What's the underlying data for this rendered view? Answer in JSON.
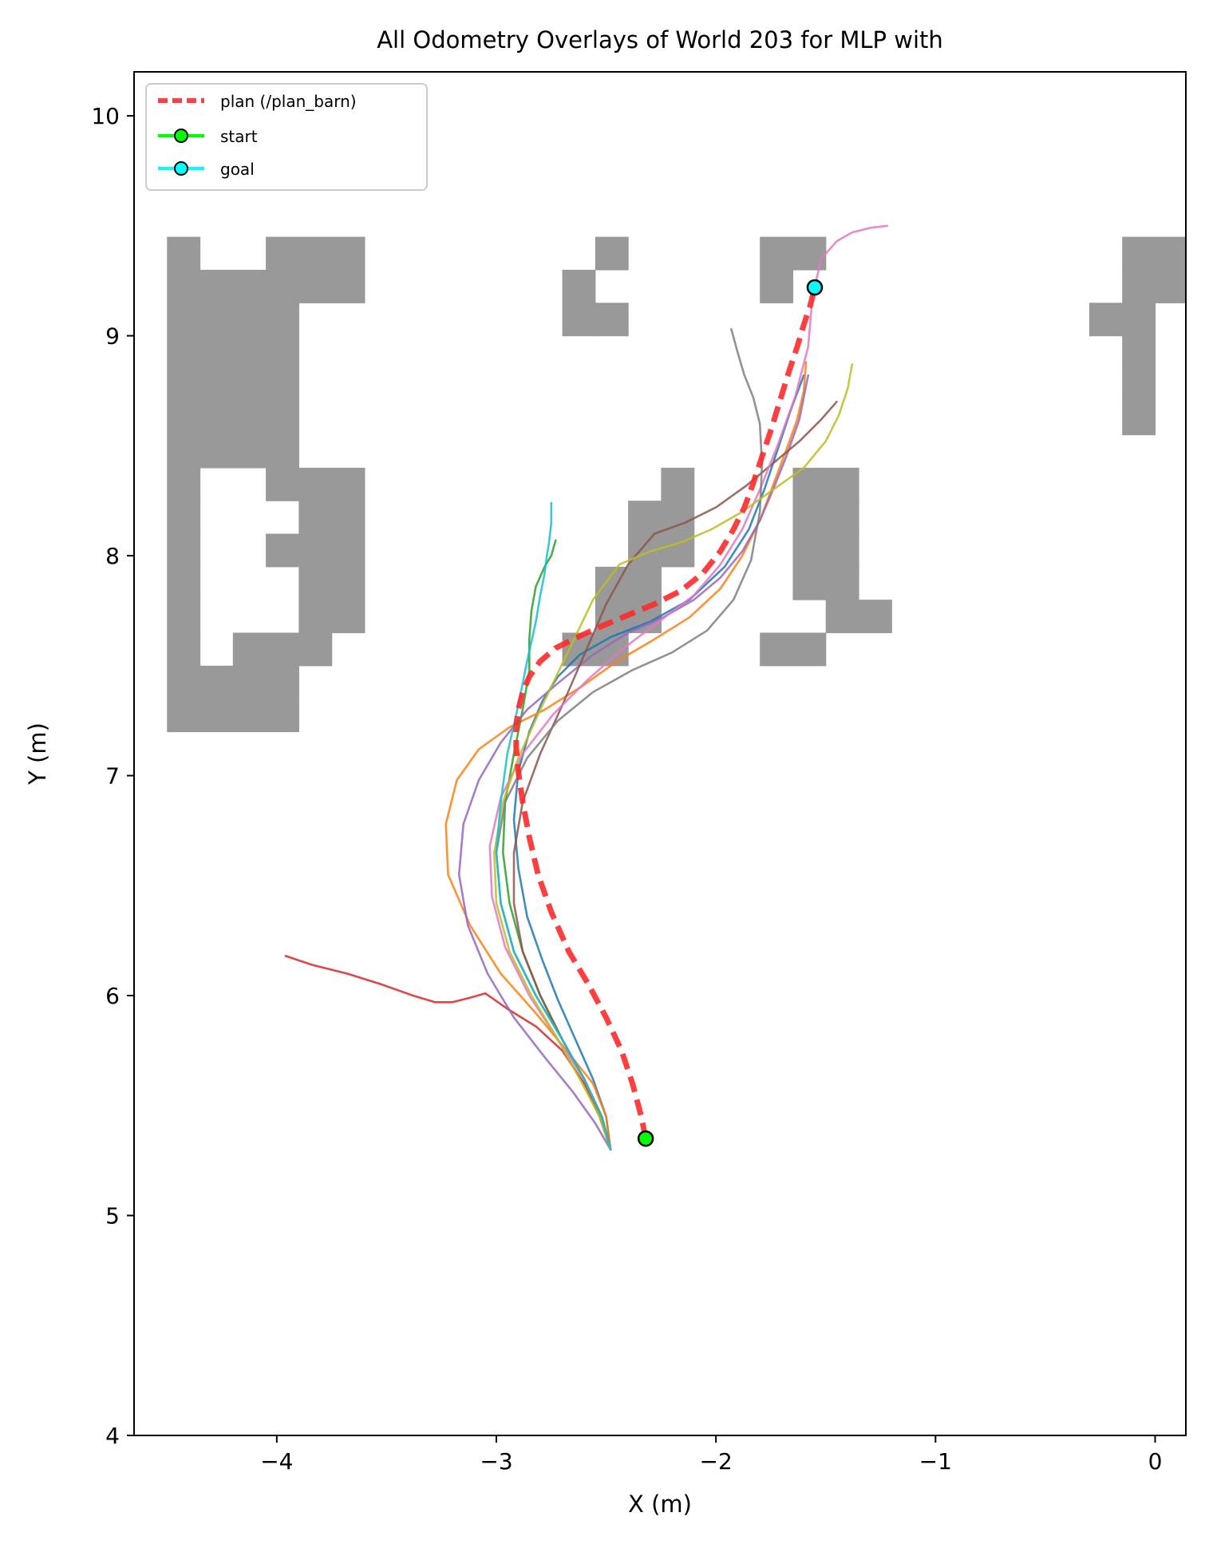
{
  "chart_data": {
    "type": "line",
    "title": "All Odometry Overlays of World 203 for MLP with",
    "xlabel": "X (m)",
    "ylabel": "Y (m)",
    "xlim": [
      -4.65,
      0.14
    ],
    "ylim": [
      4.0,
      10.2
    ],
    "xticks": [
      -4,
      -3,
      -2,
      -1,
      0
    ],
    "xtick_labels": [
      "−4",
      "−3",
      "−2",
      "−1",
      "0"
    ],
    "yticks": [
      4,
      5,
      6,
      7,
      8,
      9,
      10
    ],
    "ytick_labels": [
      "4",
      "5",
      "6",
      "7",
      "8",
      "9",
      "10"
    ],
    "grid": false,
    "legend_position": "top-left",
    "legend": [
      {
        "label": "plan (/plan_barn)",
        "style": "dashed",
        "color": "#ff2a2a"
      },
      {
        "label": "start",
        "style": "marker",
        "color": "#00ff00"
      },
      {
        "label": "goal",
        "style": "marker",
        "color": "#00ffff"
      }
    ],
    "occupancy_map": {
      "x0": -4.5,
      "y_top": 9.45,
      "cell": 0.15,
      "color": "#999999",
      "rows": [
        "#..###.......#....##.........########",
        "######......#.....#..........########",
        "####........##..............##..#####",
        "####.........................#..#####",
        "####.........................#..#####",
        "####.........................#..#####",
        "####...........................#####",
        "#..###.........#...##...........#####",
        "#...##........##...##...........#####",
        "#..###........##...##...........#####",
        "#...##.......##....##...........#####",
        "#...##.......##.....##.........##.###",
        "#.###.......##....##............##..###",
        "####...........................##.#####",
        "####...............................####"
      ]
    },
    "plan": {
      "name": "plan (/plan_barn)",
      "color": "#ff2a2a",
      "x": [
        -2.32,
        -2.34,
        -2.38,
        -2.43,
        -2.5,
        -2.58,
        -2.67,
        -2.75,
        -2.81,
        -2.85,
        -2.88,
        -2.9,
        -2.91,
        -2.91,
        -2.9,
        -2.88,
        -2.85,
        -2.8,
        -2.73,
        -2.63,
        -2.52,
        -2.4,
        -2.28,
        -2.16,
        -2.06,
        -1.98,
        -1.92,
        -1.87,
        -1.83,
        -1.79,
        -1.75,
        -1.71,
        -1.67,
        -1.63,
        -1.6,
        -1.57,
        -1.55
      ],
      "y": [
        5.35,
        5.45,
        5.6,
        5.75,
        5.9,
        6.05,
        6.2,
        6.38,
        6.55,
        6.72,
        6.88,
        7.02,
        7.13,
        7.22,
        7.3,
        7.38,
        7.45,
        7.52,
        7.58,
        7.63,
        7.68,
        7.73,
        7.78,
        7.84,
        7.92,
        8.02,
        8.12,
        8.22,
        8.33,
        8.45,
        8.57,
        8.7,
        8.83,
        8.95,
        9.05,
        9.14,
        9.22
      ]
    },
    "start": {
      "x": -2.32,
      "y": 5.35
    },
    "goal": {
      "x": -1.55,
      "y": 9.22
    },
    "series": [
      {
        "color": "#1f77b4",
        "x": [
          -2.48,
          -2.5,
          -2.56,
          -2.64,
          -2.72,
          -2.79,
          -2.86,
          -2.9,
          -2.92,
          -2.9,
          -2.85,
          -2.79,
          -2.72,
          -2.62,
          -2.48,
          -2.3,
          -2.12,
          -1.96,
          -1.85,
          -1.78,
          -1.72,
          -1.66,
          -1.6
        ],
        "y": [
          5.3,
          5.45,
          5.62,
          5.8,
          5.98,
          6.16,
          6.36,
          6.58,
          6.8,
          7.02,
          7.2,
          7.34,
          7.45,
          7.55,
          7.63,
          7.7,
          7.8,
          7.95,
          8.12,
          8.3,
          8.48,
          8.66,
          8.82
        ]
      },
      {
        "color": "#ff7f0e",
        "x": [
          -2.48,
          -2.5,
          -2.56,
          -2.68,
          -2.82,
          -2.98,
          -3.12,
          -3.22,
          -3.23,
          -3.18,
          -3.08,
          -2.94,
          -2.78,
          -2.62,
          -2.45,
          -2.28,
          -2.12,
          -1.98,
          -1.88,
          -1.8,
          -1.74,
          -1.68,
          -1.63,
          -1.6,
          -1.59
        ],
        "y": [
          5.3,
          5.45,
          5.6,
          5.75,
          5.92,
          6.1,
          6.32,
          6.55,
          6.78,
          6.98,
          7.12,
          7.22,
          7.3,
          7.4,
          7.52,
          7.62,
          7.72,
          7.85,
          8.0,
          8.16,
          8.32,
          8.48,
          8.62,
          8.75,
          8.88
        ]
      },
      {
        "color": "#2ca02c",
        "x": [
          -2.48,
          -2.52,
          -2.6,
          -2.7,
          -2.8,
          -2.88,
          -2.94,
          -2.97,
          -2.96,
          -2.92,
          -2.88,
          -2.85,
          -2.85,
          -2.84,
          -2.82,
          -2.78,
          -2.75,
          -2.73
        ],
        "y": [
          5.3,
          5.45,
          5.62,
          5.8,
          6.0,
          6.2,
          6.42,
          6.65,
          6.88,
          7.1,
          7.3,
          7.48,
          7.62,
          7.75,
          7.86,
          7.95,
          8.0,
          8.07
        ]
      },
      {
        "color": "#d62728",
        "x": [
          -2.48,
          -2.53,
          -2.6,
          -2.7,
          -2.82,
          -2.95,
          -3.05,
          -3.12,
          -3.2,
          -3.28,
          -3.38,
          -3.52,
          -3.68,
          -3.84,
          -3.96
        ],
        "y": [
          5.3,
          5.45,
          5.6,
          5.75,
          5.86,
          5.94,
          6.01,
          5.99,
          5.97,
          5.97,
          6.0,
          6.05,
          6.1,
          6.14,
          6.18
        ]
      },
      {
        "color": "#9467bd",
        "x": [
          -2.48,
          -2.55,
          -2.65,
          -2.78,
          -2.92,
          -3.04,
          -3.13,
          -3.17,
          -3.15,
          -3.08,
          -2.98,
          -2.86,
          -2.72,
          -2.56,
          -2.4,
          -2.24,
          -2.1,
          -1.98,
          -1.88,
          -1.8,
          -1.74,
          -1.68,
          -1.62,
          -1.58
        ],
        "y": [
          5.3,
          5.42,
          5.56,
          5.72,
          5.9,
          6.1,
          6.32,
          6.55,
          6.78,
          6.98,
          7.15,
          7.3,
          7.42,
          7.55,
          7.65,
          7.72,
          7.8,
          7.9,
          8.02,
          8.16,
          8.3,
          8.45,
          8.62,
          8.82
        ]
      },
      {
        "color": "#8c564b",
        "x": [
          -2.48,
          -2.52,
          -2.6,
          -2.7,
          -2.8,
          -2.88,
          -2.92,
          -2.92,
          -2.88,
          -2.8,
          -2.7,
          -2.6,
          -2.5,
          -2.4,
          -2.28,
          -2.14,
          -2.0,
          -1.86,
          -1.74,
          -1.62,
          -1.52,
          -1.45
        ],
        "y": [
          5.3,
          5.45,
          5.62,
          5.8,
          6.0,
          6.2,
          6.42,
          6.65,
          6.88,
          7.1,
          7.32,
          7.55,
          7.78,
          7.96,
          8.1,
          8.15,
          8.22,
          8.32,
          8.42,
          8.52,
          8.62,
          8.7
        ]
      },
      {
        "color": "#e377c2",
        "x": [
          -2.48,
          -2.52,
          -2.6,
          -2.72,
          -2.85,
          -2.96,
          -3.02,
          -3.03,
          -2.98,
          -2.88,
          -2.74,
          -2.58,
          -2.42,
          -2.26,
          -2.1,
          -1.98,
          -1.88,
          -1.8,
          -1.72,
          -1.64,
          -1.58,
          -1.56,
          -1.52,
          -1.45,
          -1.38,
          -1.3,
          -1.22
        ],
        "y": [
          5.3,
          5.45,
          5.62,
          5.8,
          6.0,
          6.22,
          6.45,
          6.68,
          6.9,
          7.1,
          7.28,
          7.44,
          7.58,
          7.7,
          7.82,
          7.96,
          8.12,
          8.3,
          8.5,
          8.72,
          8.95,
          9.18,
          9.35,
          9.43,
          9.47,
          9.49,
          9.5
        ]
      },
      {
        "color": "#7f7f7f",
        "x": [
          -2.48,
          -2.52,
          -2.6,
          -2.7,
          -2.82,
          -2.92,
          -2.98,
          -3.0,
          -2.96,
          -2.86,
          -2.72,
          -2.56,
          -2.38,
          -2.2,
          -2.04,
          -1.92,
          -1.84,
          -1.8,
          -1.79,
          -1.8,
          -1.83,
          -1.87,
          -1.9,
          -1.93
        ],
        "y": [
          5.3,
          5.45,
          5.62,
          5.8,
          6.0,
          6.2,
          6.42,
          6.65,
          6.88,
          7.08,
          7.25,
          7.38,
          7.48,
          7.56,
          7.66,
          7.8,
          7.98,
          8.2,
          8.42,
          8.6,
          8.72,
          8.82,
          8.92,
          9.03
        ]
      },
      {
        "color": "#bcbd22",
        "x": [
          -2.48,
          -2.53,
          -2.62,
          -2.72,
          -2.84,
          -2.94,
          -3.0,
          -3.01,
          -2.97,
          -2.9,
          -2.8,
          -2.68,
          -2.56,
          -2.44,
          -2.3,
          -2.16,
          -2.02,
          -1.88,
          -1.74,
          -1.6,
          -1.5,
          -1.44,
          -1.4,
          -1.38
        ],
        "y": [
          5.3,
          5.45,
          5.62,
          5.8,
          6.0,
          6.2,
          6.42,
          6.65,
          6.88,
          7.08,
          7.3,
          7.55,
          7.8,
          7.96,
          8.02,
          8.06,
          8.12,
          8.2,
          8.3,
          8.4,
          8.52,
          8.64,
          8.76,
          8.87
        ]
      },
      {
        "color": "#17becf",
        "x": [
          -2.48,
          -2.52,
          -2.6,
          -2.7,
          -2.82,
          -2.92,
          -2.98,
          -3.0,
          -2.98,
          -2.95,
          -2.9,
          -2.86,
          -2.82,
          -2.8,
          -2.78,
          -2.77,
          -2.76,
          -2.75,
          -2.75
        ],
        "y": [
          5.3,
          5.45,
          5.62,
          5.8,
          6.0,
          6.2,
          6.42,
          6.65,
          6.88,
          7.1,
          7.32,
          7.52,
          7.7,
          7.82,
          7.92,
          8.0,
          8.06,
          8.15,
          8.24
        ]
      }
    ]
  }
}
